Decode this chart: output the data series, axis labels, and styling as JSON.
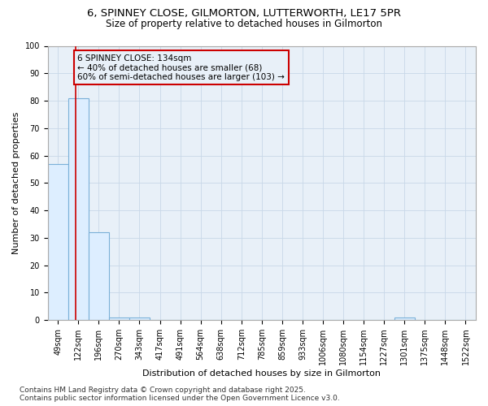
{
  "title_line1": "6, SPINNEY CLOSE, GILMORTON, LUTTERWORTH, LE17 5PR",
  "title_line2": "Size of property relative to detached houses in Gilmorton",
  "xlabel": "Distribution of detached houses by size in Gilmorton",
  "ylabel": "Number of detached properties",
  "categories": [
    "49sqm",
    "122sqm",
    "196sqm",
    "270sqm",
    "343sqm",
    "417sqm",
    "491sqm",
    "564sqm",
    "638sqm",
    "712sqm",
    "785sqm",
    "859sqm",
    "933sqm",
    "1006sqm",
    "1080sqm",
    "1154sqm",
    "1227sqm",
    "1301sqm",
    "1375sqm",
    "1448sqm",
    "1522sqm"
  ],
  "values": [
    57,
    81,
    32,
    1,
    1,
    0,
    0,
    0,
    0,
    0,
    0,
    0,
    0,
    0,
    0,
    0,
    0,
    1,
    0,
    0,
    0
  ],
  "bar_color": "#ddeeff",
  "bar_edge_color": "#7ab0d8",
  "bar_edge_width": 0.8,
  "grid_color": "#c8d8e8",
  "annotation_box_text": "6 SPINNEY CLOSE: 134sqm\n← 40% of detached houses are smaller (68)\n60% of semi-detached houses are larger (103) →",
  "annotation_box_color": "#cc0000",
  "vline_x": 0.87,
  "vline_color": "#cc0000",
  "ylim": [
    0,
    100
  ],
  "yticks": [
    0,
    10,
    20,
    30,
    40,
    50,
    60,
    70,
    80,
    90,
    100
  ],
  "bg_color": "#ffffff",
  "plot_bg_color": "#e8f0f8",
  "footer_line1": "Contains HM Land Registry data © Crown copyright and database right 2025.",
  "footer_line2": "Contains public sector information licensed under the Open Government Licence v3.0.",
  "title_fontsize": 9.5,
  "subtitle_fontsize": 8.5,
  "axis_label_fontsize": 8,
  "tick_fontsize": 7,
  "annotation_fontsize": 7.5,
  "footer_fontsize": 6.5
}
